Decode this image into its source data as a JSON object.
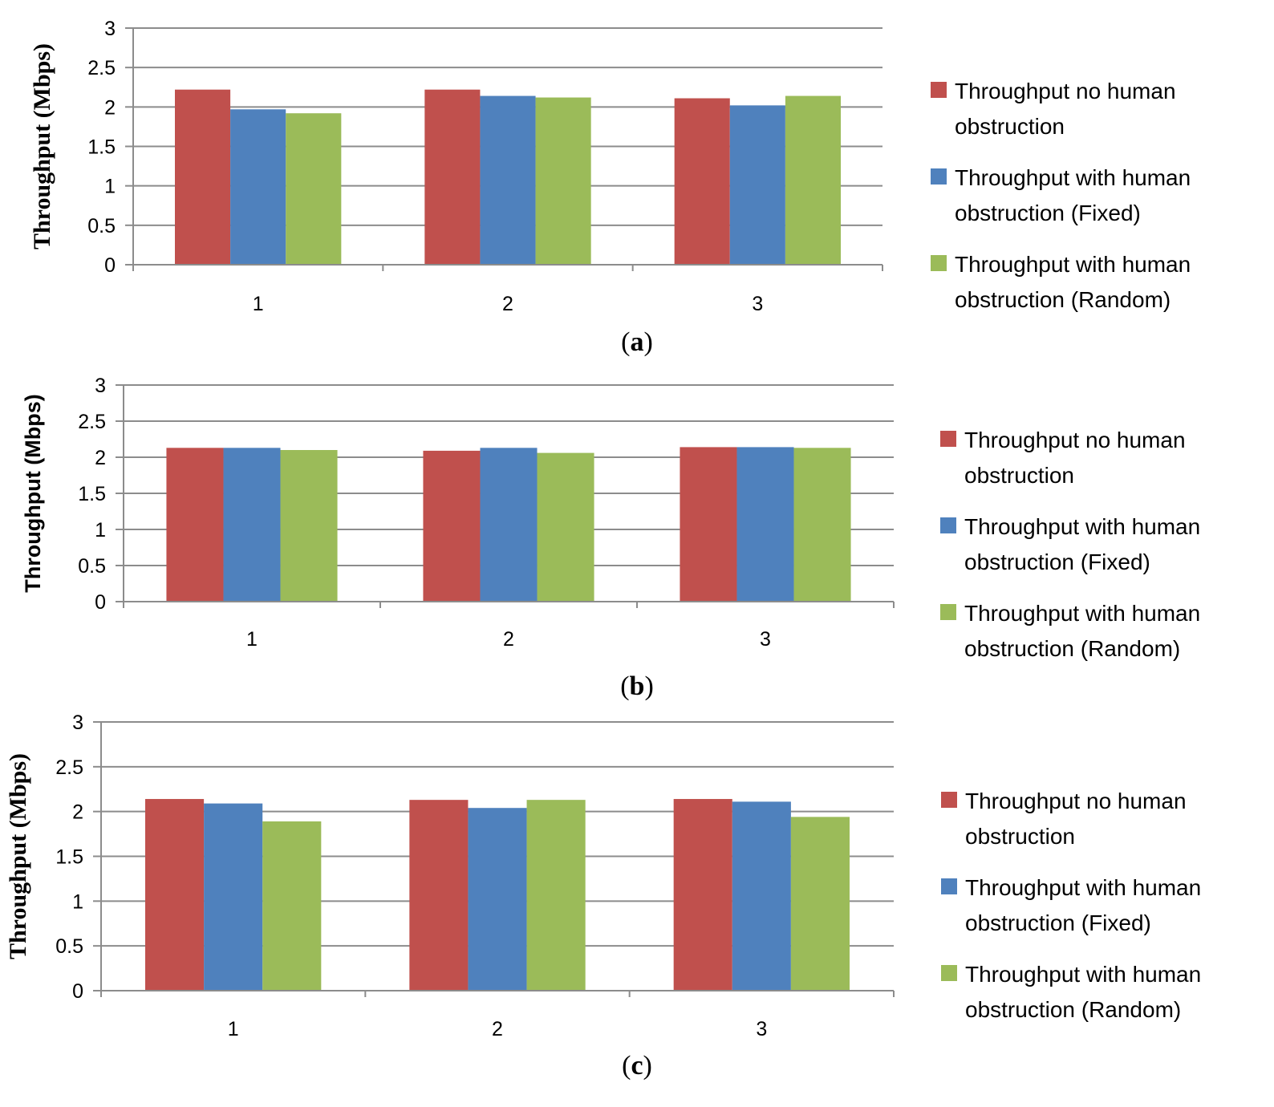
{
  "chart_data": [
    {
      "type": "bar",
      "panel_label": "a",
      "categories": [
        "1",
        "2",
        "3"
      ],
      "series": [
        {
          "name": "Throughput no human\nobstruction",
          "color": "#C0504D",
          "values": [
            2.22,
            2.22,
            2.11
          ]
        },
        {
          "name": "Throughput with human\nobstruction (Fixed)",
          "color": "#4F81BD",
          "values": [
            1.97,
            2.14,
            2.02
          ]
        },
        {
          "name": "Throughput with human\nobstruction (Random)",
          "color": "#9BBB59",
          "values": [
            1.92,
            2.12,
            2.14
          ]
        }
      ],
      "title": "",
      "xlabel": "",
      "ylabel": "Throughput (Mbps)",
      "ylim": [
        0,
        3
      ],
      "yticks": [
        "0",
        "0.5",
        "1",
        "1.5",
        "2",
        "2.5",
        "3"
      ],
      "grid": true,
      "legend": "right"
    },
    {
      "type": "bar",
      "panel_label": "b",
      "categories": [
        "1",
        "2",
        "3"
      ],
      "series": [
        {
          "name": "Throughput no human\nobstruction",
          "color": "#C0504D",
          "values": [
            2.13,
            2.09,
            2.14
          ]
        },
        {
          "name": "Throughput with human\nobstruction (Fixed)",
          "color": "#4F81BD",
          "values": [
            2.13,
            2.13,
            2.14
          ]
        },
        {
          "name": "Throughput with human\nobstruction (Random)",
          "color": "#9BBB59",
          "values": [
            2.1,
            2.06,
            2.13
          ]
        }
      ],
      "title": "",
      "xlabel": "",
      "ylabel": "Throughput (Mbps)",
      "ylim": [
        0,
        3
      ],
      "yticks": [
        "0",
        "0.5",
        "1",
        "1.5",
        "2",
        "2.5",
        "3"
      ],
      "grid": true,
      "legend": "right"
    },
    {
      "type": "bar",
      "panel_label": "c",
      "categories": [
        "1",
        "2",
        "3"
      ],
      "series": [
        {
          "name": "Throughput no human\nobstruction",
          "color": "#C0504D",
          "values": [
            2.14,
            2.13,
            2.14
          ]
        },
        {
          "name": "Throughput with human\nobstruction (Fixed)",
          "color": "#4F81BD",
          "values": [
            2.09,
            2.04,
            2.11
          ]
        },
        {
          "name": "Throughput with human\nobstruction (Random)",
          "color": "#9BBB59",
          "values": [
            1.89,
            2.13,
            1.94
          ]
        }
      ],
      "title": "",
      "xlabel": "",
      "ylabel": "Throughput (Mbps)",
      "ylim": [
        0,
        3
      ],
      "yticks": [
        "0",
        "0.5",
        "1",
        "1.5",
        "2",
        "2.5",
        "3"
      ],
      "grid": true,
      "legend": "right"
    }
  ]
}
